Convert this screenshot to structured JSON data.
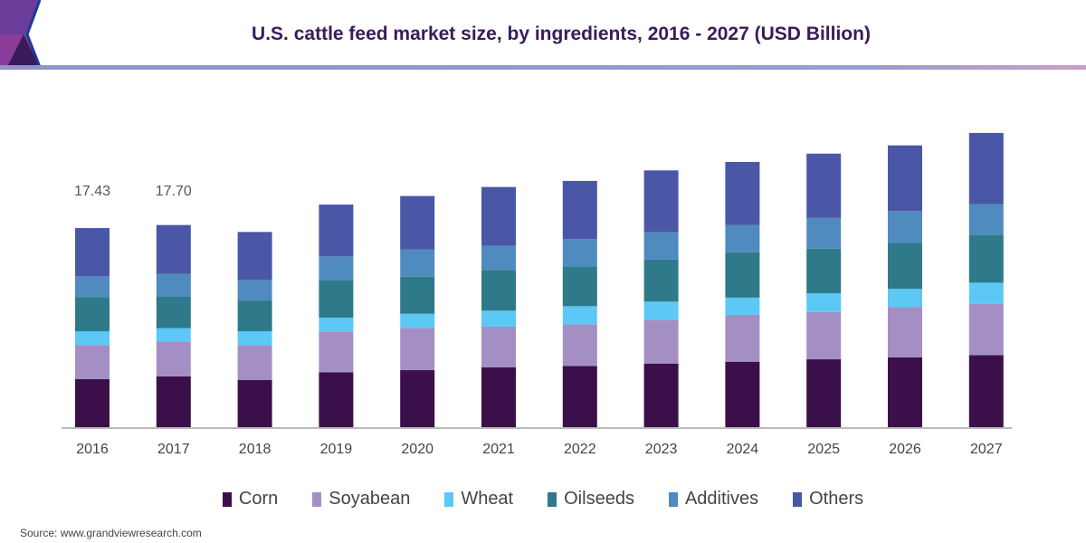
{
  "title": "U.S. cattle feed market size, by ingredients, 2016 - 2027 (USD Billion)",
  "source": "Source: www.grandviewresearch.com",
  "chart_data": {
    "type": "bar",
    "stacked": true,
    "title": "U.S. cattle feed market size, by ingredients, 2016 - 2027 (USD Billion)",
    "categories": [
      "2016",
      "2017",
      "2018",
      "2019",
      "2020",
      "2021",
      "2022",
      "2023",
      "2024",
      "2025",
      "2026",
      "2027"
    ],
    "series": [
      {
        "name": "Corn",
        "color": "#3a0f4a",
        "values": [
          4.2,
          4.45,
          4.12,
          4.81,
          4.99,
          5.23,
          5.36,
          5.57,
          5.73,
          5.94,
          6.12,
          6.31
        ]
      },
      {
        "name": "Soyabean",
        "color": "#a48fc4",
        "values": [
          3.0,
          3.0,
          3.07,
          3.57,
          3.7,
          3.57,
          3.65,
          3.84,
          4.1,
          4.14,
          4.41,
          4.49
        ]
      },
      {
        "name": "Wheat",
        "color": "#5bc8f5",
        "values": [
          1.2,
          1.22,
          1.21,
          1.21,
          1.24,
          1.4,
          1.58,
          1.58,
          1.51,
          1.64,
          1.58,
          1.85
        ]
      },
      {
        "name": "Oilseeds",
        "color": "#2e7a8a",
        "values": [
          3.0,
          2.74,
          2.69,
          3.3,
          3.25,
          3.57,
          3.49,
          3.69,
          3.96,
          3.91,
          4.04,
          4.18
        ]
      },
      {
        "name": "Additives",
        "color": "#4f8bbf",
        "values": [
          1.8,
          2.01,
          1.8,
          2.06,
          2.38,
          2.11,
          2.38,
          2.38,
          2.4,
          2.69,
          2.77,
          2.69
        ]
      },
      {
        "name": "Others",
        "color": "#4a56a6",
        "values": [
          4.23,
          4.28,
          4.2,
          4.54,
          4.68,
          5.15,
          5.1,
          5.42,
          5.52,
          5.63,
          5.75,
          6.24
        ]
      }
    ],
    "data_labels": [
      {
        "category": "2016",
        "text": "17.43"
      },
      {
        "category": "2017",
        "text": "17.70"
      }
    ],
    "ylim": [
      0,
      26
    ],
    "grid": false,
    "legend_placement": "bottom"
  }
}
